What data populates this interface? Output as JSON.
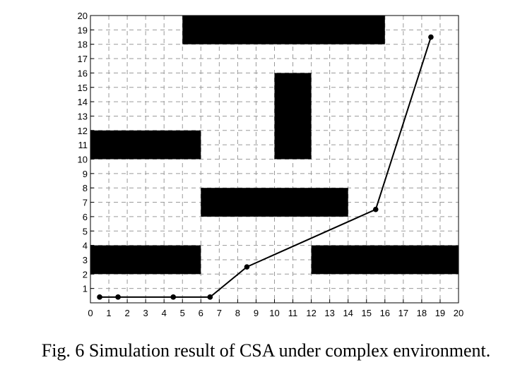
{
  "caption": "Fig. 6 Simulation result of CSA under complex environment.",
  "chart_data": {
    "type": "line",
    "title": "",
    "xlabel": "",
    "ylabel": "",
    "xlim": [
      0,
      20
    ],
    "ylim": [
      0,
      20
    ],
    "x_ticks": [
      0,
      1,
      2,
      3,
      4,
      5,
      6,
      7,
      8,
      9,
      10,
      11,
      12,
      13,
      14,
      15,
      16,
      17,
      18,
      19,
      20
    ],
    "y_ticks": [
      1,
      2,
      3,
      4,
      5,
      6,
      7,
      8,
      9,
      10,
      11,
      12,
      13,
      14,
      15,
      16,
      17,
      18,
      19,
      20
    ],
    "grid": "dashed",
    "obstacles": [
      {
        "x": [
          5,
          16
        ],
        "y": [
          18,
          20
        ]
      },
      {
        "x": [
          10,
          12
        ],
        "y": [
          10,
          16
        ]
      },
      {
        "x": [
          0,
          6
        ],
        "y": [
          10,
          12
        ]
      },
      {
        "x": [
          6,
          14
        ],
        "y": [
          6,
          8
        ]
      },
      {
        "x": [
          0,
          6
        ],
        "y": [
          2,
          4
        ]
      },
      {
        "x": [
          12,
          20
        ],
        "y": [
          2,
          4
        ]
      }
    ],
    "series": [
      {
        "x": [
          0.5,
          1.5,
          4.5,
          6.5,
          8.5,
          15.5,
          18.5
        ],
        "y": [
          0.4,
          0.4,
          0.4,
          0.4,
          2.5,
          6.5,
          18.5
        ],
        "color": "#000000"
      }
    ]
  }
}
